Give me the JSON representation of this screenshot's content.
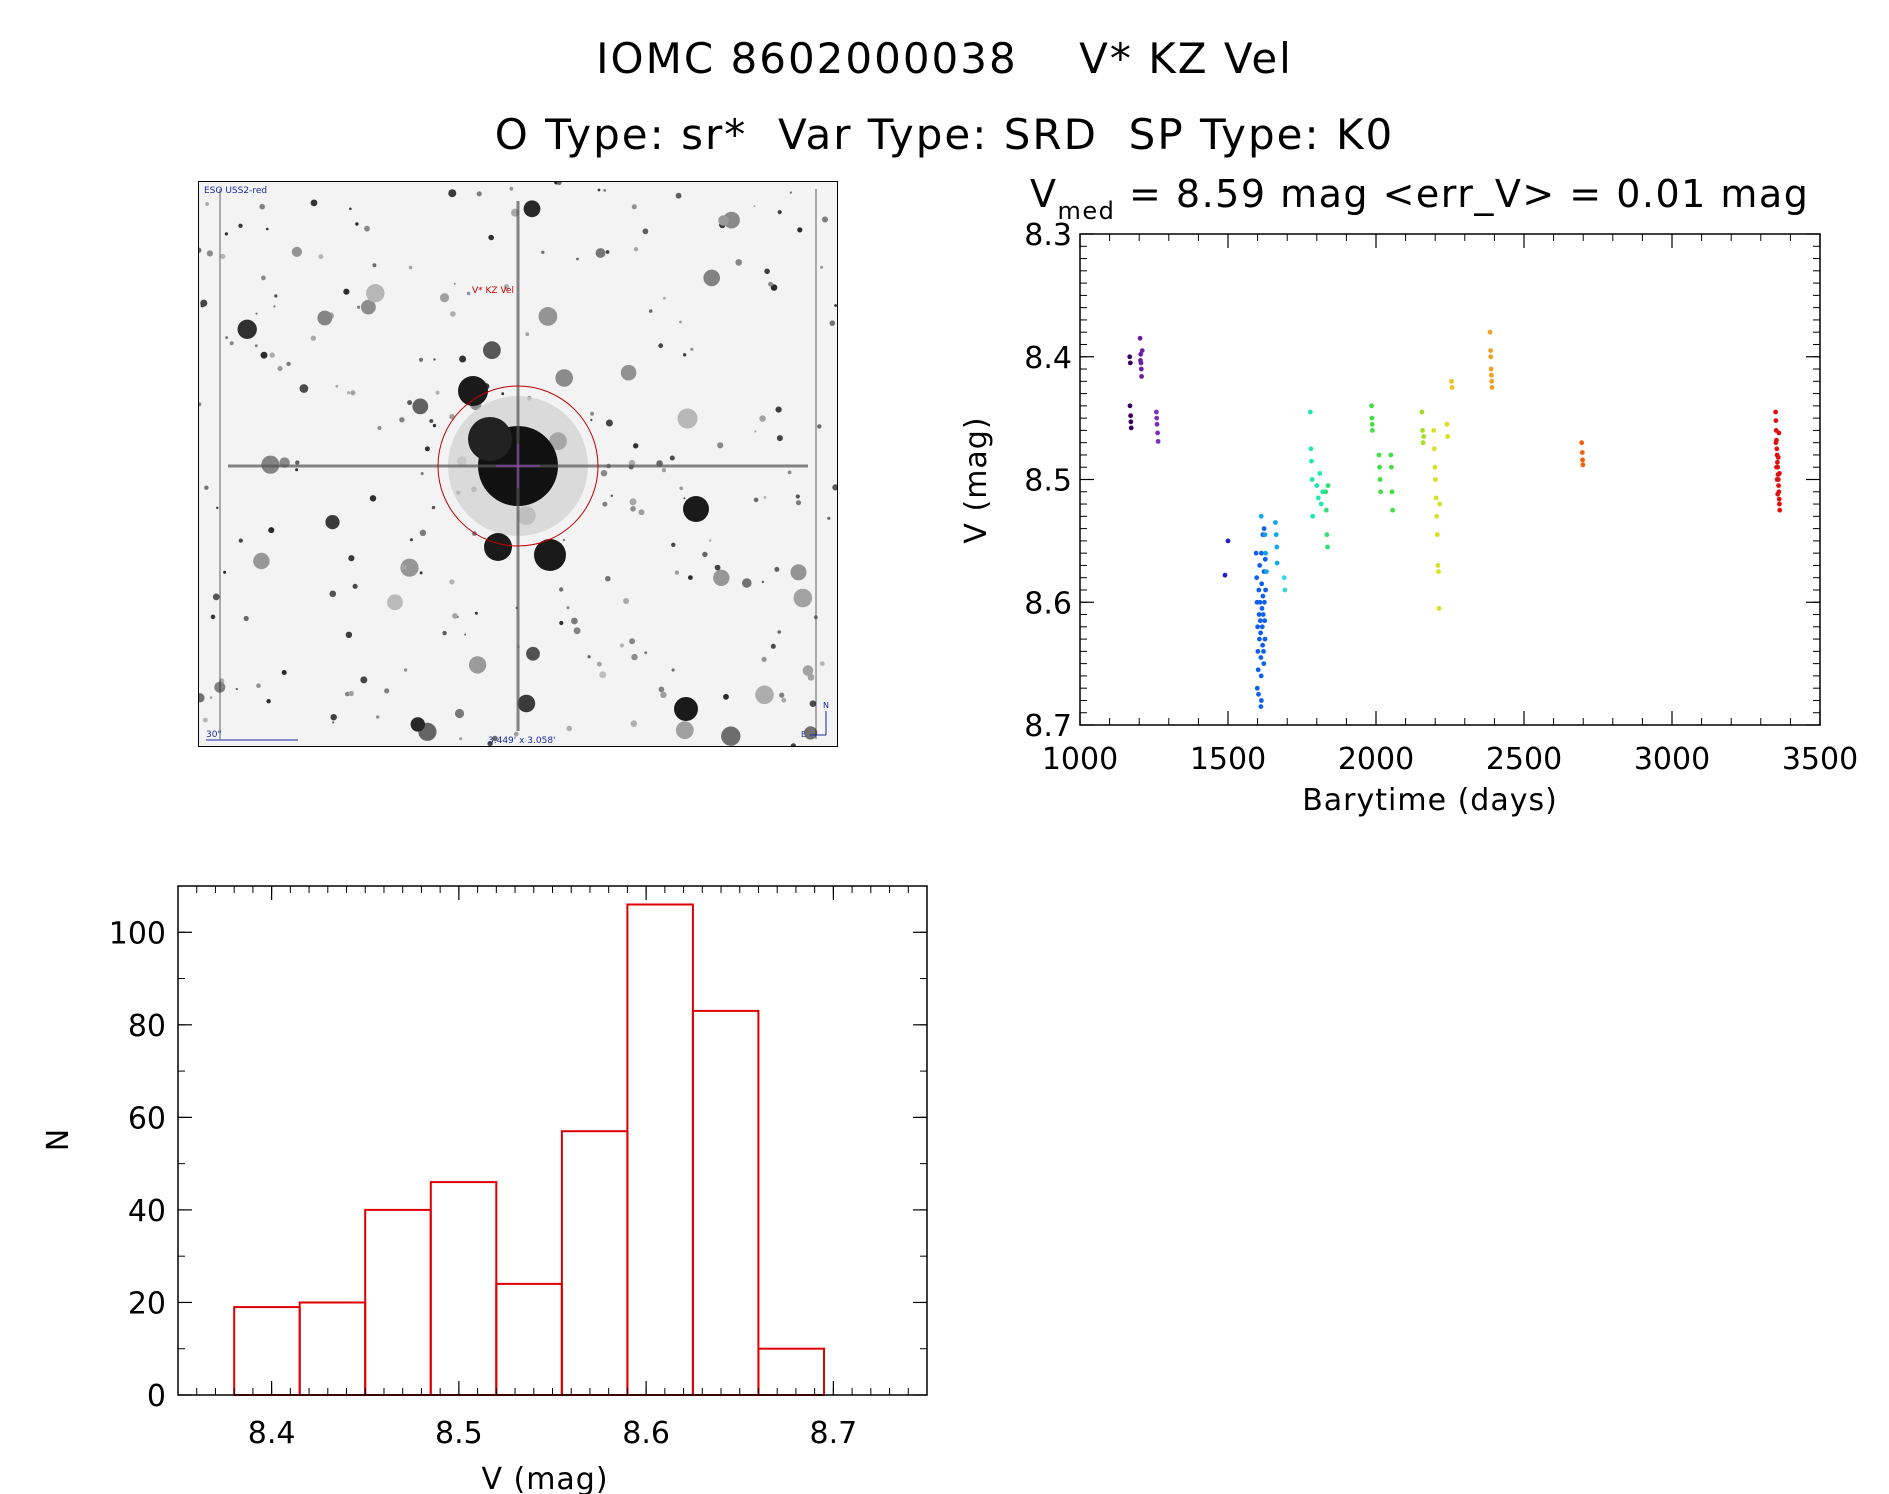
{
  "header": {
    "title_line1": "IOMC 8602000038    V* KZ Vel",
    "title_line2": "O Type: sr*  Var Type: SRD  SP Type: K0"
  },
  "sky_image": {
    "survey_label": "ESO USS2-red",
    "target_label": "V* KZ Vel",
    "scale_label": "30\"",
    "field_label": "3.449' x 3.058'",
    "north_label": "N",
    "east_label": "E",
    "target_color": "#c00000"
  },
  "chart_data": [
    {
      "type": "scatter",
      "title": "V",
      "title_sub": "med",
      "title_rest": " = 8.59 mag <err_V> = 0.01 mag",
      "xlabel": "Barytime (days)",
      "ylabel": "V (mag)",
      "xlim": [
        1000,
        3500
      ],
      "ylim": [
        8.3,
        8.7
      ],
      "y_inverted": true,
      "x_ticks": [
        1000,
        1500,
        2000,
        2500,
        3000,
        3500
      ],
      "y_ticks": [
        8.3,
        8.4,
        8.5,
        8.6,
        8.7
      ],
      "grid": false,
      "series": [
        {
          "color": "#3a0060",
          "points": [
            [
              1168,
              8.4
            ],
            [
              1170,
              8.405
            ],
            [
              1171,
              8.448
            ],
            [
              1172,
              8.453
            ],
            [
              1173,
              8.458
            ],
            [
              1169,
              8.44
            ]
          ]
        },
        {
          "color": "#6a1fa0",
          "points": [
            [
              1203,
              8.385
            ],
            [
              1205,
              8.398
            ],
            [
              1206,
              8.405
            ],
            [
              1207,
              8.41
            ],
            [
              1208,
              8.416
            ],
            [
              1210,
              8.395
            ],
            [
              1204,
              8.403
            ]
          ]
        },
        {
          "color": "#7f30b8",
          "points": [
            [
              1258,
              8.445
            ],
            [
              1260,
              8.455
            ],
            [
              1262,
              8.462
            ],
            [
              1264,
              8.469
            ],
            [
              1259,
              8.45
            ]
          ]
        },
        {
          "color": "#2020d0",
          "points": [
            [
              1490,
              8.578
            ],
            [
              1500,
              8.55
            ]
          ]
        },
        {
          "color": "#1060f0",
          "points": [
            [
              1595,
              8.56
            ],
            [
              1597,
              8.58
            ],
            [
              1598,
              8.6
            ],
            [
              1600,
              8.62
            ],
            [
              1601,
              8.64
            ],
            [
              1602,
              8.655
            ],
            [
              1603,
              8.675
            ],
            [
              1604,
              8.59
            ],
            [
              1605,
              8.61
            ],
            [
              1606,
              8.63
            ],
            [
              1607,
              8.57
            ],
            [
              1608,
              8.6
            ],
            [
              1609,
              8.615
            ],
            [
              1610,
              8.625
            ],
            [
              1611,
              8.645
            ],
            [
              1612,
              8.66
            ],
            [
              1613,
              8.68
            ],
            [
              1614,
              8.585
            ],
            [
              1615,
              8.605
            ],
            [
              1616,
              8.62
            ],
            [
              1617,
              8.635
            ],
            [
              1618,
              8.595
            ],
            [
              1619,
              8.61
            ],
            [
              1620,
              8.64
            ],
            [
              1621,
              8.65
            ],
            [
              1622,
              8.575
            ],
            [
              1623,
              8.6
            ],
            [
              1624,
              8.615
            ],
            [
              1625,
              8.63
            ],
            [
              1626,
              8.565
            ],
            [
              1599,
              8.67
            ],
            [
              1611,
              8.685
            ],
            [
              1613,
              8.56
            ],
            [
              1618,
              8.545
            ],
            [
              1622,
              8.54
            ],
            [
              1627,
              8.59
            ]
          ]
        },
        {
          "color": "#10a8f0",
          "points": [
            [
              1612,
              8.53
            ],
            [
              1625,
              8.545
            ],
            [
              1627,
              8.56
            ],
            [
              1630,
              8.575
            ],
            [
              1660,
              8.535
            ],
            [
              1663,
              8.545
            ],
            [
              1665,
              8.555
            ],
            [
              1666,
              8.568
            ]
          ]
        },
        {
          "color": "#30d8e0",
          "points": [
            [
              1690,
              8.58
            ],
            [
              1692,
              8.59
            ]
          ]
        },
        {
          "color": "#20e8b0",
          "points": [
            [
              1778,
              8.445
            ],
            [
              1780,
              8.475
            ],
            [
              1782,
              8.485
            ],
            [
              1784,
              8.5
            ],
            [
              1786,
              8.53
            ],
            [
              1800,
              8.505
            ],
            [
              1805,
              8.515
            ],
            [
              1810,
              8.495
            ],
            [
              1815,
              8.52
            ],
            [
              1820,
              8.51
            ]
          ]
        },
        {
          "color": "#30e070",
          "points": [
            [
              1830,
              8.51
            ],
            [
              1832,
              8.525
            ],
            [
              1834,
              8.545
            ],
            [
              1836,
              8.555
            ],
            [
              1838,
              8.505
            ]
          ]
        },
        {
          "color": "#40e040",
          "points": [
            [
              1985,
              8.44
            ],
            [
              1986,
              8.45
            ],
            [
              1987,
              8.455
            ],
            [
              1988,
              8.46
            ],
            [
              2010,
              8.48
            ],
            [
              2012,
              8.49
            ],
            [
              2014,
              8.5
            ],
            [
              2016,
              8.51
            ],
            [
              2050,
              8.48
            ],
            [
              2052,
              8.49
            ],
            [
              2054,
              8.51
            ],
            [
              2056,
              8.525
            ]
          ]
        },
        {
          "color": "#a0e020",
          "points": [
            [
              2155,
              8.445
            ],
            [
              2157,
              8.46
            ],
            [
              2159,
              8.47
            ],
            [
              2161,
              8.465
            ]
          ]
        },
        {
          "color": "#d8e020",
          "points": [
            [
              2195,
              8.46
            ],
            [
              2197,
              8.475
            ],
            [
              2199,
              8.49
            ],
            [
              2201,
              8.5
            ],
            [
              2203,
              8.515
            ],
            [
              2205,
              8.53
            ],
            [
              2207,
              8.545
            ],
            [
              2209,
              8.57
            ],
            [
              2211,
              8.575
            ],
            [
              2213,
              8.605
            ],
            [
              2215,
              8.52
            ],
            [
              2240,
              8.455
            ],
            [
              2242,
              8.465
            ]
          ]
        },
        {
          "color": "#f0c020",
          "points": [
            [
              2255,
              8.42
            ],
            [
              2257,
              8.425
            ]
          ]
        },
        {
          "color": "#f0a020",
          "points": [
            [
              2385,
              8.38
            ],
            [
              2387,
              8.395
            ],
            [
              2388,
              8.4
            ],
            [
              2389,
              8.41
            ],
            [
              2390,
              8.415
            ],
            [
              2391,
              8.42
            ],
            [
              2392,
              8.425
            ]
          ]
        },
        {
          "color": "#f06010",
          "points": [
            [
              2695,
              8.47
            ],
            [
              2697,
              8.478
            ],
            [
              2698,
              8.484
            ],
            [
              2699,
              8.488
            ]
          ]
        },
        {
          "color": "#e01010",
          "points": [
            [
              3350,
              8.445
            ],
            [
              3351,
              8.452
            ],
            [
              3352,
              8.46
            ],
            [
              3353,
              8.468
            ],
            [
              3354,
              8.475
            ],
            [
              3355,
              8.48
            ],
            [
              3356,
              8.486
            ],
            [
              3357,
              8.49
            ],
            [
              3358,
              8.496
            ],
            [
              3359,
              8.5
            ],
            [
              3360,
              8.505
            ],
            [
              3361,
              8.51
            ],
            [
              3362,
              8.516
            ],
            [
              3363,
              8.52
            ],
            [
              3364,
              8.525
            ],
            [
              3351,
              8.47
            ],
            [
              3353,
              8.49
            ],
            [
              3355,
              8.5
            ],
            [
              3357,
              8.512
            ],
            [
              3359,
              8.482
            ],
            [
              3361,
              8.462
            ],
            [
              3363,
              8.495
            ]
          ]
        }
      ]
    },
    {
      "type": "bar",
      "histogram": true,
      "xlabel": "V (mag)",
      "ylabel": "N",
      "xlim": [
        8.35,
        8.75
      ],
      "ylim": [
        0,
        110
      ],
      "x_ticks": [
        8.4,
        8.5,
        8.6,
        8.7
      ],
      "y_ticks": [
        0,
        20,
        40,
        60,
        80,
        100
      ],
      "bin_edges": [
        8.38,
        8.415,
        8.45,
        8.485,
        8.52,
        8.555,
        8.59,
        8.625,
        8.66,
        8.695
      ],
      "values": [
        19,
        20,
        40,
        46,
        24,
        57,
        106,
        83,
        10
      ],
      "bar_color": "#e00000"
    }
  ]
}
